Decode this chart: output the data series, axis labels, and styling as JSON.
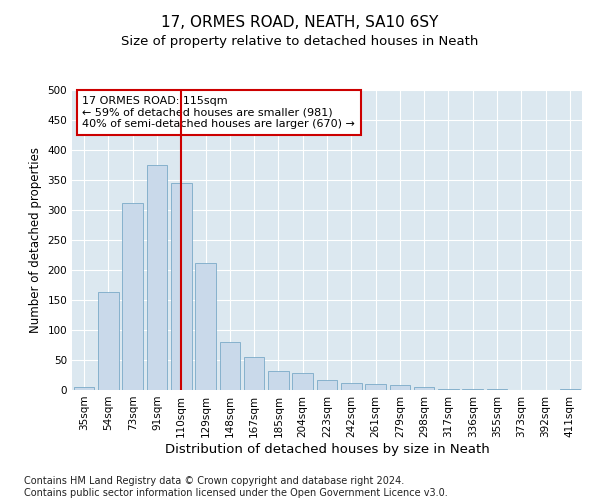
{
  "title": "17, ORMES ROAD, NEATH, SA10 6SY",
  "subtitle": "Size of property relative to detached houses in Neath",
  "xlabel": "Distribution of detached houses by size in Neath",
  "ylabel": "Number of detached properties",
  "categories": [
    "35sqm",
    "54sqm",
    "73sqm",
    "91sqm",
    "110sqm",
    "129sqm",
    "148sqm",
    "167sqm",
    "185sqm",
    "204sqm",
    "223sqm",
    "242sqm",
    "261sqm",
    "279sqm",
    "298sqm",
    "317sqm",
    "336sqm",
    "355sqm",
    "373sqm",
    "392sqm",
    "411sqm"
  ],
  "values": [
    5,
    163,
    312,
    375,
    345,
    212,
    80,
    55,
    32,
    28,
    17,
    12,
    10,
    8,
    5,
    2,
    1,
    1,
    0,
    0,
    1
  ],
  "bar_color": "#c9d9ea",
  "bar_edge_color": "#7aaac8",
  "vline_x_index": 4,
  "vline_color": "#cc0000",
  "annotation_box_text": "17 ORMES ROAD: 115sqm\n← 59% of detached houses are smaller (981)\n40% of semi-detached houses are larger (670) →",
  "annotation_box_color": "#cc0000",
  "ylim": [
    0,
    500
  ],
  "yticks": [
    0,
    50,
    100,
    150,
    200,
    250,
    300,
    350,
    400,
    450,
    500
  ],
  "plot_bg_color": "#dce8f0",
  "footnote": "Contains HM Land Registry data © Crown copyright and database right 2024.\nContains public sector information licensed under the Open Government Licence v3.0.",
  "title_fontsize": 11,
  "subtitle_fontsize": 9.5,
  "xlabel_fontsize": 9.5,
  "ylabel_fontsize": 8.5,
  "footnote_fontsize": 7,
  "tick_fontsize": 7.5,
  "annotation_fontsize": 8
}
